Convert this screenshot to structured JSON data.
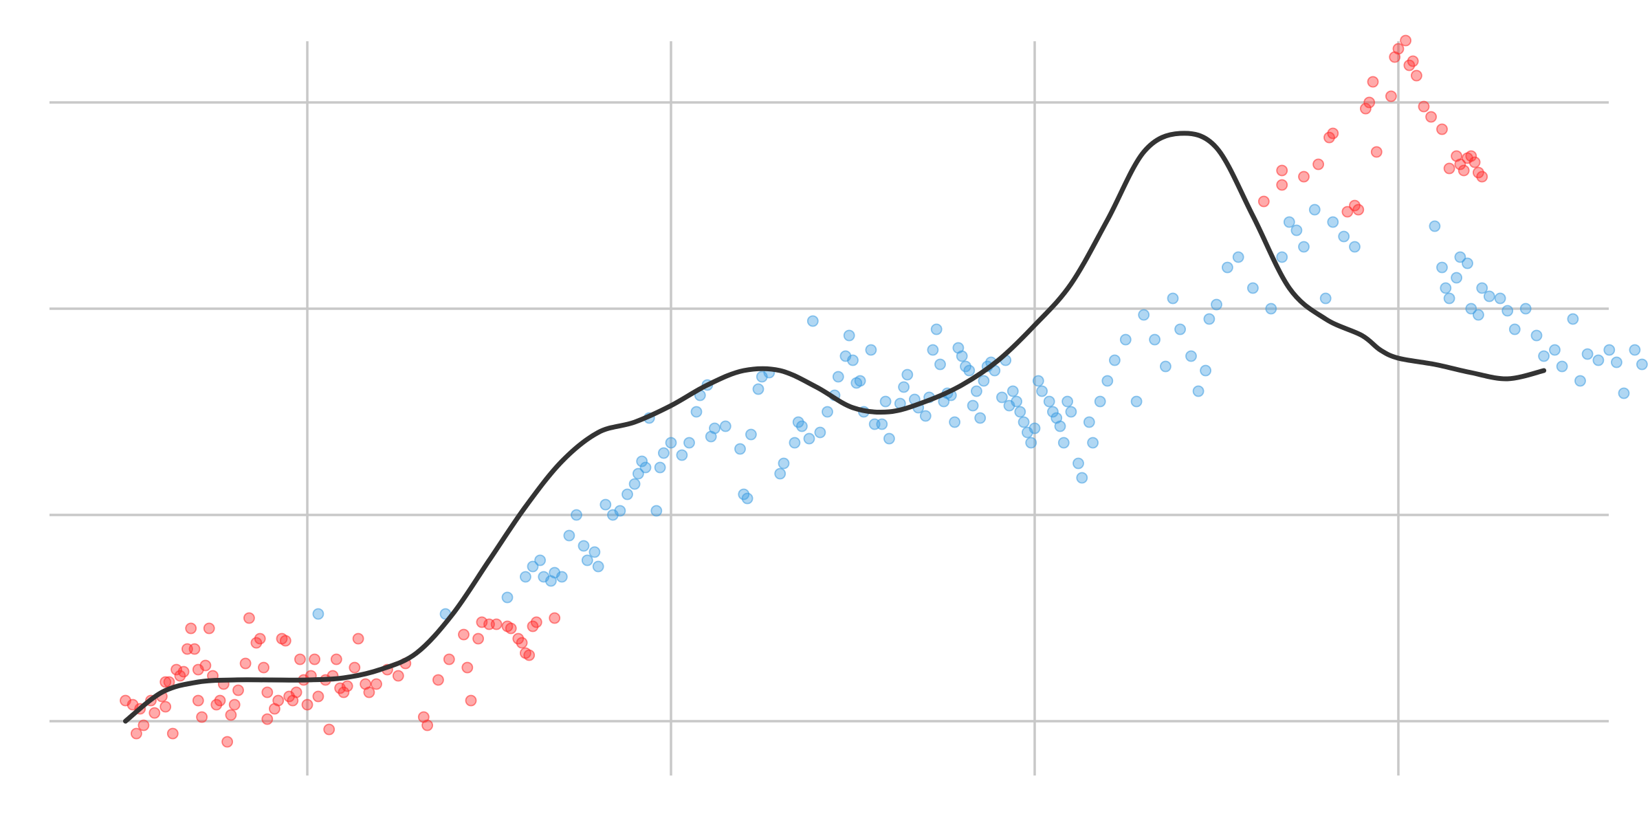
{
  "chart_data": {
    "type": "scatter",
    "title": "",
    "xlabel": "",
    "ylabel": "",
    "xlim": [
      -0.2,
      4.1
    ],
    "ylim": [
      -0.15,
      3.5
    ],
    "x_gridlines": [
      0.5,
      1.5,
      2.5,
      3.5
    ],
    "y_gridlines": [
      0,
      1,
      2,
      3
    ],
    "grid": true,
    "tick_labels_shown": false,
    "legend": "none",
    "colors": {
      "highlight": "#ff2a2a",
      "normal": "#3a9ae0",
      "trend": "#333333",
      "grid": "#c8c8c8"
    },
    "trend": {
      "x": [
        0.0,
        0.1,
        0.2,
        0.3,
        0.4,
        0.5,
        0.6,
        0.7,
        0.8,
        0.9,
        1.0,
        1.1,
        1.2,
        1.3,
        1.4,
        1.5,
        1.6,
        1.7,
        1.8,
        1.9,
        2.0,
        2.1,
        2.2,
        2.3,
        2.4,
        2.5,
        2.6,
        2.7,
        2.8,
        2.9,
        3.0,
        3.1,
        3.2,
        3.3,
        3.4,
        3.45,
        3.5,
        3.6,
        3.7,
        3.8,
        3.9
      ],
      "y": [
        0.0,
        0.14,
        0.19,
        0.2,
        0.2,
        0.2,
        0.21,
        0.25,
        0.33,
        0.52,
        0.78,
        1.04,
        1.26,
        1.4,
        1.45,
        1.53,
        1.63,
        1.7,
        1.7,
        1.62,
        1.52,
        1.5,
        1.55,
        1.63,
        1.75,
        1.92,
        2.12,
        2.43,
        2.76,
        2.85,
        2.78,
        2.45,
        2.1,
        1.95,
        1.87,
        1.8,
        1.76,
        1.73,
        1.69,
        1.66,
        1.7
      ]
    },
    "series": [
      {
        "color": "highlight",
        "points": [
          [
            0.0,
            0.1
          ],
          [
            0.02,
            0.08
          ],
          [
            0.03,
            -0.06
          ],
          [
            0.04,
            0.06
          ],
          [
            0.05,
            -0.02
          ],
          [
            0.07,
            0.1
          ],
          [
            0.08,
            0.04
          ],
          [
            0.1,
            0.12
          ],
          [
            0.11,
            0.07
          ],
          [
            0.11,
            0.19
          ],
          [
            0.12,
            0.19
          ],
          [
            0.13,
            -0.06
          ],
          [
            0.14,
            0.25
          ],
          [
            0.15,
            0.22
          ],
          [
            0.16,
            0.24
          ],
          [
            0.17,
            0.35
          ],
          [
            0.18,
            0.45
          ],
          [
            0.19,
            0.35
          ],
          [
            0.2,
            0.1
          ],
          [
            0.2,
            0.25
          ],
          [
            0.21,
            0.02
          ],
          [
            0.22,
            0.27
          ],
          [
            0.23,
            0.45
          ],
          [
            0.24,
            0.22
          ],
          [
            0.25,
            0.08
          ],
          [
            0.26,
            0.1
          ],
          [
            0.27,
            0.18
          ],
          [
            0.28,
            -0.1
          ],
          [
            0.29,
            0.03
          ],
          [
            0.3,
            0.08
          ],
          [
            0.31,
            0.15
          ],
          [
            0.33,
            0.28
          ],
          [
            0.34,
            0.5
          ],
          [
            0.36,
            0.38
          ],
          [
            0.37,
            0.4
          ],
          [
            0.38,
            0.26
          ],
          [
            0.39,
            0.14
          ],
          [
            0.39,
            0.01
          ],
          [
            0.41,
            0.06
          ],
          [
            0.42,
            0.1
          ],
          [
            0.43,
            0.4
          ],
          [
            0.44,
            0.39
          ],
          [
            0.45,
            0.12
          ],
          [
            0.46,
            0.1
          ],
          [
            0.47,
            0.14
          ],
          [
            0.48,
            0.3
          ],
          [
            0.49,
            0.2
          ],
          [
            0.5,
            0.08
          ],
          [
            0.51,
            0.22
          ],
          [
            0.52,
            0.3
          ],
          [
            0.53,
            0.12
          ],
          [
            0.55,
            0.2
          ],
          [
            0.56,
            -0.04
          ],
          [
            0.57,
            0.22
          ],
          [
            0.58,
            0.3
          ],
          [
            0.59,
            0.16
          ],
          [
            0.6,
            0.14
          ],
          [
            0.61,
            0.17
          ],
          [
            0.63,
            0.26
          ],
          [
            0.64,
            0.4
          ],
          [
            0.66,
            0.18
          ],
          [
            0.67,
            0.14
          ],
          [
            0.69,
            0.18
          ],
          [
            0.72,
            0.25
          ],
          [
            0.75,
            0.22
          ],
          [
            0.77,
            0.28
          ],
          [
            0.82,
            0.02
          ],
          [
            0.83,
            -0.02
          ],
          [
            0.86,
            0.2
          ],
          [
            0.89,
            0.3
          ],
          [
            0.93,
            0.42
          ],
          [
            0.94,
            0.26
          ],
          [
            0.95,
            0.1
          ],
          [
            0.97,
            0.4
          ],
          [
            0.98,
            0.48
          ],
          [
            1.0,
            0.47
          ],
          [
            1.02,
            0.47
          ],
          [
            1.05,
            0.46
          ],
          [
            1.06,
            0.45
          ],
          [
            1.08,
            0.4
          ],
          [
            1.09,
            0.38
          ],
          [
            1.1,
            0.33
          ],
          [
            1.11,
            0.32
          ],
          [
            1.12,
            0.46
          ],
          [
            1.13,
            0.48
          ],
          [
            1.18,
            0.5
          ],
          [
            3.13,
            2.52
          ],
          [
            3.18,
            2.6
          ],
          [
            3.18,
            2.67
          ],
          [
            3.24,
            2.64
          ],
          [
            3.28,
            2.7
          ],
          [
            3.31,
            2.83
          ],
          [
            3.32,
            2.85
          ],
          [
            3.36,
            2.47
          ],
          [
            3.38,
            2.5
          ],
          [
            3.39,
            2.48
          ],
          [
            3.41,
            2.97
          ],
          [
            3.42,
            3.0
          ],
          [
            3.43,
            3.1
          ],
          [
            3.44,
            2.76
          ],
          [
            3.48,
            3.03
          ],
          [
            3.49,
            3.22
          ],
          [
            3.5,
            3.26
          ],
          [
            3.52,
            3.3
          ],
          [
            3.53,
            3.18
          ],
          [
            3.54,
            3.2
          ],
          [
            3.55,
            3.13
          ],
          [
            3.57,
            2.98
          ],
          [
            3.59,
            2.93
          ],
          [
            3.62,
            2.87
          ],
          [
            3.64,
            2.68
          ],
          [
            3.66,
            2.74
          ],
          [
            3.67,
            2.7
          ],
          [
            3.68,
            2.67
          ],
          [
            3.69,
            2.73
          ],
          [
            3.7,
            2.74
          ],
          [
            3.71,
            2.71
          ],
          [
            3.72,
            2.66
          ],
          [
            3.73,
            2.64
          ]
        ]
      },
      {
        "color": "normal",
        "points": [
          [
            0.53,
            0.52
          ],
          [
            0.88,
            0.52
          ],
          [
            1.05,
            0.6
          ],
          [
            1.1,
            0.7
          ],
          [
            1.12,
            0.75
          ],
          [
            1.14,
            0.78
          ],
          [
            1.15,
            0.7
          ],
          [
            1.17,
            0.68
          ],
          [
            1.18,
            0.72
          ],
          [
            1.2,
            0.7
          ],
          [
            1.22,
            0.9
          ],
          [
            1.24,
            1.0
          ],
          [
            1.26,
            0.85
          ],
          [
            1.27,
            0.78
          ],
          [
            1.29,
            0.82
          ],
          [
            1.3,
            0.75
          ],
          [
            1.32,
            1.05
          ],
          [
            1.34,
            1.0
          ],
          [
            1.36,
            1.02
          ],
          [
            1.38,
            1.1
          ],
          [
            1.4,
            1.15
          ],
          [
            1.41,
            1.2
          ],
          [
            1.42,
            1.26
          ],
          [
            1.43,
            1.23
          ],
          [
            1.44,
            1.47
          ],
          [
            1.46,
            1.02
          ],
          [
            1.47,
            1.23
          ],
          [
            1.48,
            1.3
          ],
          [
            1.5,
            1.35
          ],
          [
            1.53,
            1.29
          ],
          [
            1.55,
            1.35
          ],
          [
            1.57,
            1.5
          ],
          [
            1.58,
            1.58
          ],
          [
            1.6,
            1.63
          ],
          [
            1.61,
            1.38
          ],
          [
            1.62,
            1.42
          ],
          [
            1.65,
            1.43
          ],
          [
            1.69,
            1.32
          ],
          [
            1.7,
            1.1
          ],
          [
            1.71,
            1.08
          ],
          [
            1.72,
            1.39
          ],
          [
            1.74,
            1.61
          ],
          [
            1.75,
            1.67
          ],
          [
            1.77,
            1.69
          ],
          [
            1.8,
            1.2
          ],
          [
            1.81,
            1.25
          ],
          [
            1.84,
            1.35
          ],
          [
            1.85,
            1.45
          ],
          [
            1.86,
            1.43
          ],
          [
            1.88,
            1.37
          ],
          [
            1.89,
            1.94
          ],
          [
            1.91,
            1.4
          ],
          [
            1.93,
            1.5
          ],
          [
            1.95,
            1.58
          ],
          [
            1.96,
            1.67
          ],
          [
            1.98,
            1.77
          ],
          [
            1.99,
            1.87
          ],
          [
            2.0,
            1.75
          ],
          [
            2.01,
            1.64
          ],
          [
            2.02,
            1.65
          ],
          [
            2.03,
            1.5
          ],
          [
            2.05,
            1.8
          ],
          [
            2.06,
            1.44
          ],
          [
            2.08,
            1.44
          ],
          [
            2.09,
            1.55
          ],
          [
            2.1,
            1.37
          ],
          [
            2.13,
            1.54
          ],
          [
            2.14,
            1.62
          ],
          [
            2.15,
            1.68
          ],
          [
            2.17,
            1.56
          ],
          [
            2.18,
            1.52
          ],
          [
            2.2,
            1.48
          ],
          [
            2.21,
            1.57
          ],
          [
            2.22,
            1.8
          ],
          [
            2.23,
            1.9
          ],
          [
            2.24,
            1.73
          ],
          [
            2.25,
            1.55
          ],
          [
            2.26,
            1.59
          ],
          [
            2.27,
            1.58
          ],
          [
            2.28,
            1.45
          ],
          [
            2.29,
            1.81
          ],
          [
            2.3,
            1.77
          ],
          [
            2.31,
            1.72
          ],
          [
            2.32,
            1.7
          ],
          [
            2.33,
            1.53
          ],
          [
            2.34,
            1.6
          ],
          [
            2.35,
            1.47
          ],
          [
            2.36,
            1.65
          ],
          [
            2.37,
            1.72
          ],
          [
            2.38,
            1.74
          ],
          [
            2.39,
            1.7
          ],
          [
            2.41,
            1.57
          ],
          [
            2.42,
            1.75
          ],
          [
            2.43,
            1.53
          ],
          [
            2.44,
            1.6
          ],
          [
            2.45,
            1.55
          ],
          [
            2.46,
            1.5
          ],
          [
            2.47,
            1.45
          ],
          [
            2.48,
            1.4
          ],
          [
            2.49,
            1.35
          ],
          [
            2.5,
            1.42
          ],
          [
            2.51,
            1.65
          ],
          [
            2.52,
            1.6
          ],
          [
            2.54,
            1.55
          ],
          [
            2.55,
            1.5
          ],
          [
            2.56,
            1.47
          ],
          [
            2.57,
            1.43
          ],
          [
            2.58,
            1.35
          ],
          [
            2.59,
            1.55
          ],
          [
            2.6,
            1.5
          ],
          [
            2.62,
            1.25
          ],
          [
            2.63,
            1.18
          ],
          [
            2.65,
            1.45
          ],
          [
            2.66,
            1.35
          ],
          [
            2.68,
            1.55
          ],
          [
            2.7,
            1.65
          ],
          [
            2.72,
            1.75
          ],
          [
            2.75,
            1.85
          ],
          [
            2.78,
            1.55
          ],
          [
            2.8,
            1.97
          ],
          [
            2.83,
            1.85
          ],
          [
            2.86,
            1.72
          ],
          [
            2.88,
            2.05
          ],
          [
            2.9,
            1.9
          ],
          [
            2.93,
            1.77
          ],
          [
            2.95,
            1.6
          ],
          [
            2.97,
            1.7
          ],
          [
            2.98,
            1.95
          ],
          [
            3.0,
            2.02
          ],
          [
            3.03,
            2.2
          ],
          [
            3.06,
            2.25
          ],
          [
            3.1,
            2.1
          ],
          [
            3.15,
            2.0
          ],
          [
            3.18,
            2.25
          ],
          [
            3.2,
            2.42
          ],
          [
            3.22,
            2.38
          ],
          [
            3.24,
            2.3
          ],
          [
            3.27,
            2.48
          ],
          [
            3.3,
            2.05
          ],
          [
            3.32,
            2.42
          ],
          [
            3.35,
            2.35
          ],
          [
            3.38,
            2.3
          ],
          [
            3.6,
            2.4
          ],
          [
            3.62,
            2.2
          ],
          [
            3.63,
            2.1
          ],
          [
            3.64,
            2.05
          ],
          [
            3.66,
            2.15
          ],
          [
            3.67,
            2.25
          ],
          [
            3.69,
            2.22
          ],
          [
            3.7,
            2.0
          ],
          [
            3.72,
            1.97
          ],
          [
            3.73,
            2.1
          ],
          [
            3.75,
            2.06
          ],
          [
            3.78,
            2.05
          ],
          [
            3.8,
            1.99
          ],
          [
            3.82,
            1.9
          ],
          [
            3.85,
            2.0
          ],
          [
            3.88,
            1.87
          ],
          [
            3.9,
            1.77
          ],
          [
            3.93,
            1.8
          ],
          [
            3.95,
            1.72
          ],
          [
            3.98,
            1.95
          ],
          [
            4.0,
            1.65
          ],
          [
            4.02,
            1.78
          ],
          [
            4.05,
            1.75
          ],
          [
            4.08,
            1.8
          ],
          [
            4.1,
            1.74
          ],
          [
            4.12,
            1.59
          ],
          [
            4.15,
            1.8
          ],
          [
            4.17,
            1.73
          ]
        ]
      }
    ]
  }
}
